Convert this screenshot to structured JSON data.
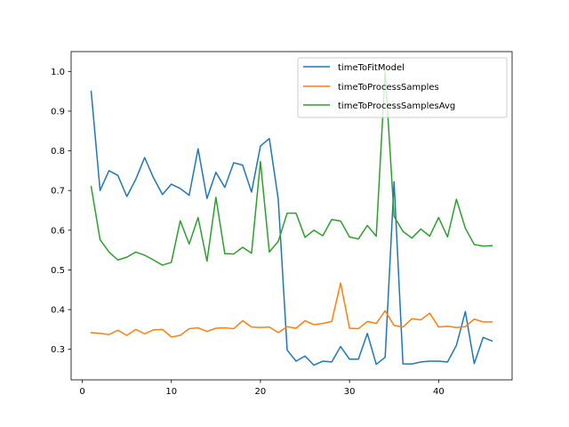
{
  "chart_data": {
    "type": "line",
    "title": "",
    "xlabel": "",
    "ylabel": "",
    "xlim": [
      -1.25,
      48.25
    ],
    "ylim": [
      0.223,
      1.05
    ],
    "x_ticks": [
      0,
      10,
      20,
      30,
      40
    ],
    "y_ticks": [
      0.3,
      0.4,
      0.5,
      0.6,
      0.7,
      0.8,
      0.9,
      1.0
    ],
    "y_tick_labels": [
      "0.3",
      "0.4",
      "0.5",
      "0.6",
      "0.7",
      "0.8",
      "0.9",
      "1.0"
    ],
    "grid": false,
    "legend_position": "top-right",
    "x": [
      1,
      2,
      3,
      4,
      5,
      6,
      7,
      8,
      9,
      10,
      11,
      12,
      13,
      14,
      15,
      16,
      17,
      18,
      19,
      20,
      21,
      22,
      23,
      24,
      25,
      26,
      27,
      28,
      29,
      30,
      31,
      32,
      33,
      34,
      35,
      36,
      37,
      38,
      39,
      40,
      41,
      42,
      43,
      44,
      45,
      46
    ],
    "series": [
      {
        "name": "timeToFitModel",
        "color": "#1f77b4",
        "values": [
          0.95,
          0.7,
          0.75,
          0.738,
          0.685,
          0.728,
          0.783,
          0.732,
          0.69,
          0.716,
          0.705,
          0.688,
          0.805,
          0.68,
          0.746,
          0.708,
          0.77,
          0.764,
          0.696,
          0.812,
          0.831,
          0.678,
          0.298,
          0.27,
          0.283,
          0.26,
          0.27,
          0.268,
          0.307,
          0.275,
          0.275,
          0.34,
          0.262,
          0.28,
          0.722,
          0.263,
          0.263,
          0.268,
          0.27,
          0.27,
          0.268,
          0.31,
          0.395,
          0.264,
          0.33,
          0.321
        ]
      },
      {
        "name": "timeToProcessSamples",
        "color": "#ff7f0e",
        "values": [
          0.342,
          0.34,
          0.337,
          0.348,
          0.335,
          0.35,
          0.339,
          0.349,
          0.35,
          0.331,
          0.335,
          0.352,
          0.354,
          0.345,
          0.353,
          0.354,
          0.352,
          0.372,
          0.356,
          0.355,
          0.356,
          0.342,
          0.357,
          0.353,
          0.372,
          0.362,
          0.365,
          0.37,
          0.467,
          0.353,
          0.352,
          0.37,
          0.365,
          0.397,
          0.36,
          0.356,
          0.377,
          0.374,
          0.391,
          0.356,
          0.358,
          0.355,
          0.357,
          0.376,
          0.369,
          0.369
        ]
      },
      {
        "name": "timeToProcessSamplesAvg",
        "color": "#2ca02c",
        "values": [
          0.71,
          0.576,
          0.545,
          0.525,
          0.532,
          0.545,
          0.537,
          0.525,
          0.512,
          0.519,
          0.624,
          0.565,
          0.632,
          0.522,
          0.683,
          0.541,
          0.54,
          0.557,
          0.542,
          0.773,
          0.545,
          0.572,
          0.643,
          0.643,
          0.582,
          0.6,
          0.586,
          0.627,
          0.623,
          0.583,
          0.578,
          0.612,
          0.585,
          1.0,
          0.635,
          0.597,
          0.58,
          0.603,
          0.585,
          0.632,
          0.583,
          0.678,
          0.605,
          0.564,
          0.56,
          0.561
        ]
      }
    ]
  }
}
